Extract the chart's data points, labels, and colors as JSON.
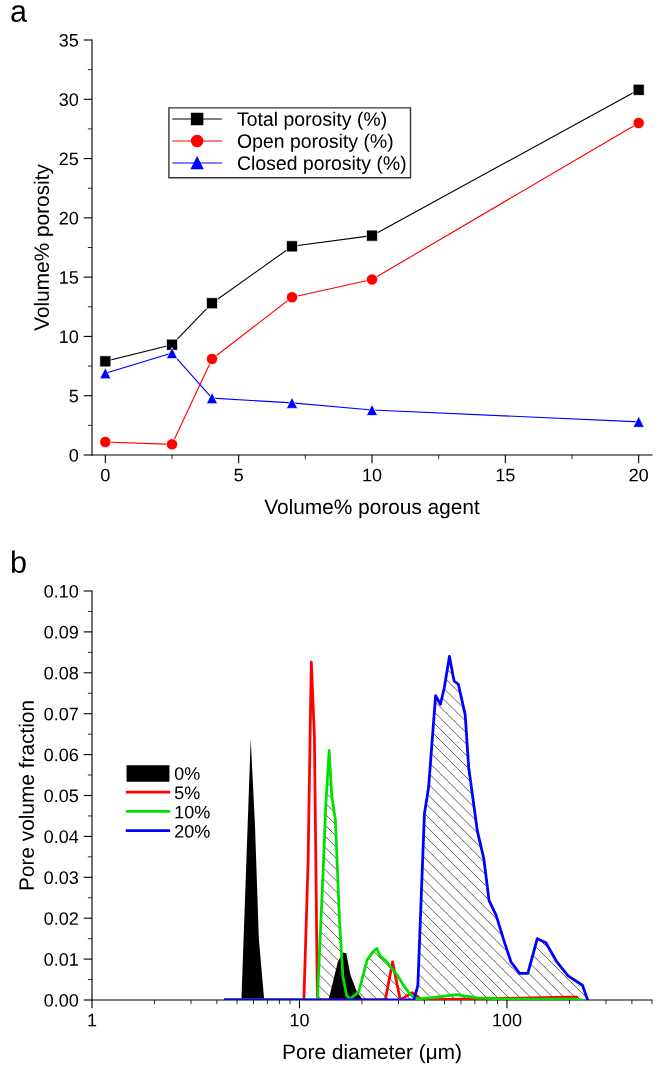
{
  "chart_data": [
    {
      "type": "line",
      "title": "a",
      "xlabel": "Volume% porous agent",
      "ylabel": "Volume% porosity",
      "xlim": [
        -0.5,
        20.5
      ],
      "xticks": [
        0,
        5,
        10,
        15,
        20
      ],
      "ylim": [
        0,
        35
      ],
      "yticks": [
        0,
        5,
        10,
        15,
        20,
        25,
        30,
        35
      ],
      "legend": "top left",
      "x": [
        0,
        2.5,
        4,
        7,
        10,
        20
      ],
      "series": [
        {
          "name": "Total porosity (%)",
          "color": "#000000",
          "marker": "square",
          "values": [
            7.9,
            9.3,
            12.8,
            17.6,
            18.5,
            30.8
          ]
        },
        {
          "name": "Open porosity (%)",
          "color": "#ff0000",
          "marker": "circle",
          "values": [
            1.1,
            0.9,
            8.1,
            13.3,
            14.8,
            28.0
          ]
        },
        {
          "name": "Closed porosity (%)",
          "color": "#0000ff",
          "marker": "triangle",
          "values": [
            6.9,
            8.6,
            4.8,
            4.4,
            3.8,
            2.8
          ]
        }
      ]
    },
    {
      "type": "area",
      "title": "b",
      "xlabel": "Pore diameter (μm)",
      "ylabel": "Pore volume fraction",
      "log": "x",
      "xlim": [
        1,
        500
      ],
      "xticks": [
        1,
        10,
        100
      ],
      "ylim": [
        0,
        0.1
      ],
      "yticks": [
        {
          "value": 0,
          "label": "0.00"
        },
        0.01,
        0.02,
        0.03,
        0.04,
        0.05,
        0.06,
        0.07,
        0.08,
        0.09,
        {
          "value": 0.1,
          "label": "0.10"
        }
      ],
      "legend": "left",
      "series": [
        {
          "name": "0%",
          "color": "#000000",
          "x": [
            4.4,
            5.25,
            5.82,
            6.1,
            6.37,
            6.76,
            13.8,
            15.3,
            16.2,
            16.8,
            17.6,
            18.9,
            20.3,
            128,
            138,
            150,
            165,
            245
          ],
          "values": [
            0,
            0,
            0.0638,
            0.0429,
            0.015,
            0,
            0,
            0.0093,
            0.0116,
            0.0114,
            0.0062,
            0.002,
            0,
            0,
            0.0007,
            0.0005,
            0,
            0
          ]
        },
        {
          "name": "5%",
          "type": "line",
          "color": "#ff0000",
          "x": [
            4.4,
            10.5,
            11.0,
            11.4,
            11.8,
            12.2,
            25.9,
            28.1,
            30.6,
            34.9,
            39,
            192,
            217,
            222
          ],
          "values": [
            0,
            0,
            0.0336,
            0.0826,
            0.0646,
            0,
            0,
            0.0093,
            0,
            0.0018,
            0,
            0.0007,
            0.0007,
            0
          ]
        },
        {
          "name": "10%",
          "color": "#00e000",
          "line_style": "solid",
          "x": [
            4.4,
            12.2,
            13.0,
            13.4,
            13.9,
            14.3,
            14.9,
            15.6,
            16.2,
            16.9,
            17.6,
            19.3,
            21.2,
            22.7,
            23.6,
            24.4,
            26.2,
            27.9,
            29.5,
            31.7,
            34,
            36.4,
            42.8,
            57,
            72,
            100,
            211,
            230
          ],
          "values": [
            0,
            0,
            0.0315,
            0.048,
            0.061,
            0.05,
            0.044,
            0.019,
            0.0057,
            0.001,
            0.0003,
            0.002,
            0.0098,
            0.0119,
            0.0126,
            0.0108,
            0.0095,
            0.0077,
            0.0062,
            0.0036,
            0.0015,
            0.0003,
            0.0005,
            0.0013,
            0.0005,
            0.0002,
            0.0002,
            0
          ]
        },
        {
          "name": "20%",
          "color": "#0000ff",
          "line_style": "solid",
          "x": [
            4.4,
            35.6,
            37.2,
            40,
            41.9,
            45.3,
            47.8,
            49.9,
            52.8,
            55.6,
            58.3,
            62.9,
            65.4,
            72,
            77.3,
            82,
            88.7,
            96,
            104.6,
            115,
            126,
            140,
            154,
            174,
            197,
            231,
            245
          ],
          "values": [
            0,
            0,
            0.0036,
            0.0455,
            0.052,
            0.0744,
            0.0723,
            0.0764,
            0.084,
            0.078,
            0.0772,
            0.0697,
            0.0568,
            0.0413,
            0.0346,
            0.0243,
            0.0207,
            0.015,
            0.0093,
            0.0065,
            0.0065,
            0.015,
            0.014,
            0.0093,
            0.0059,
            0.0036,
            0
          ]
        }
      ]
    }
  ]
}
